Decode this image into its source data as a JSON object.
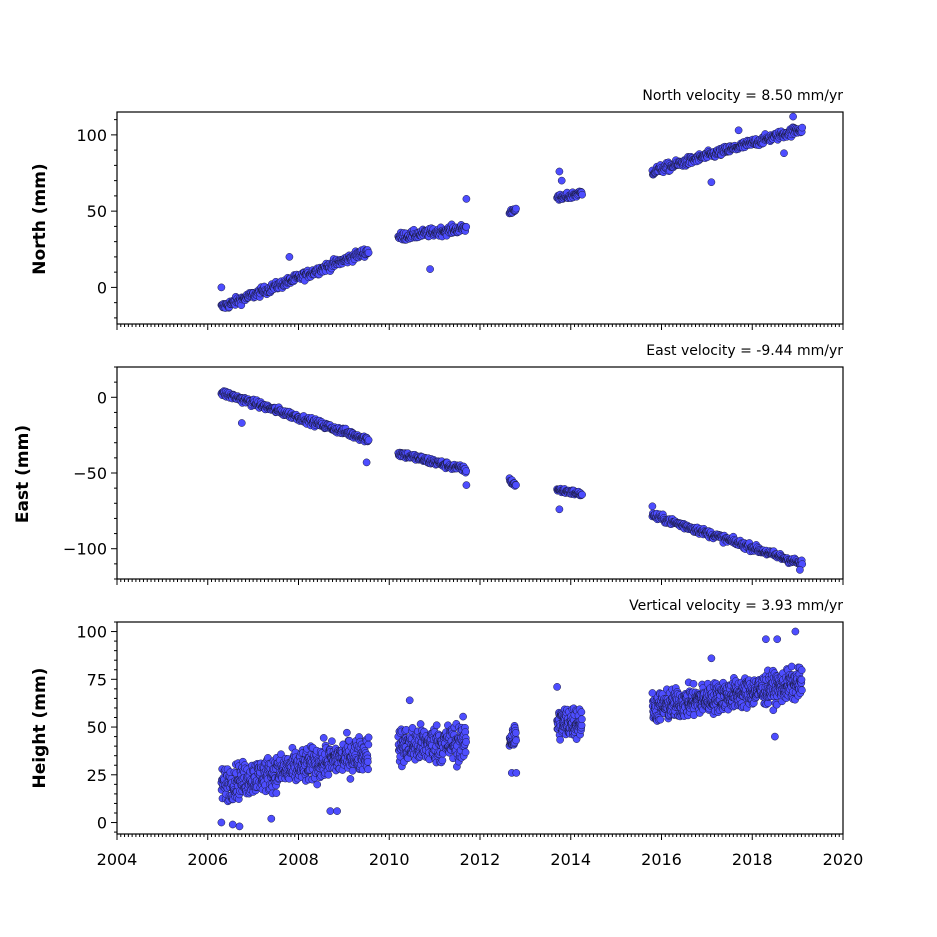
{
  "chart_data": [
    {
      "type": "scatter",
      "ylabel": "North (mm)",
      "annotation": "North velocity = 8.50 mm/yr",
      "ylim": [
        -24,
        115
      ],
      "yticks": [
        0,
        50,
        100
      ],
      "xlim": [
        2004,
        2020
      ],
      "marker_color": "#4d4dff",
      "segments": [
        {
          "start": 2006.3,
          "end": 2009.55,
          "y0": -13,
          "y1": 24,
          "spread": 5,
          "step": 0.011
        },
        {
          "start": 2010.2,
          "end": 2011.7,
          "y0": 33,
          "y1": 39,
          "spread": 5,
          "step": 0.011
        },
        {
          "start": 2012.65,
          "end": 2012.8,
          "y0": 49,
          "y1": 52,
          "spread": 3,
          "step": 0.011
        },
        {
          "start": 2013.7,
          "end": 2014.25,
          "y0": 58,
          "y1": 62,
          "spread": 4,
          "step": 0.011
        },
        {
          "start": 2015.8,
          "end": 2019.1,
          "y0": 76,
          "y1": 104,
          "spread": 5,
          "step": 0.011
        }
      ],
      "outliers": [
        {
          "x": 2006.3,
          "y": 0
        },
        {
          "x": 2007.8,
          "y": 20
        },
        {
          "x": 2010.9,
          "y": 12
        },
        {
          "x": 2011.7,
          "y": 58
        },
        {
          "x": 2013.75,
          "y": 76
        },
        {
          "x": 2013.8,
          "y": 70
        },
        {
          "x": 2017.1,
          "y": 69
        },
        {
          "x": 2017.7,
          "y": 103
        },
        {
          "x": 2018.9,
          "y": 112
        },
        {
          "x": 2018.7,
          "y": 88
        }
      ]
    },
    {
      "type": "scatter",
      "ylabel": "East (mm)",
      "annotation": "East velocity = -9.44 mm/yr",
      "ylim": [
        -120,
        20
      ],
      "yticks": [
        -100,
        -50,
        0
      ],
      "xlim": [
        2004,
        2020
      ],
      "marker_color": "#4d4dff",
      "segments": [
        {
          "start": 2006.3,
          "end": 2009.55,
          "y0": 3,
          "y1": -28,
          "spread": 4,
          "step": 0.011
        },
        {
          "start": 2010.2,
          "end": 2011.7,
          "y0": -37,
          "y1": -48,
          "spread": 4,
          "step": 0.011
        },
        {
          "start": 2012.65,
          "end": 2012.8,
          "y0": -55,
          "y1": -58,
          "spread": 3,
          "step": 0.011
        },
        {
          "start": 2013.7,
          "end": 2014.25,
          "y0": -61,
          "y1": -64,
          "spread": 3,
          "step": 0.011
        },
        {
          "start": 2015.8,
          "end": 2019.1,
          "y0": -78,
          "y1": -110,
          "spread": 4,
          "step": 0.011
        }
      ],
      "outliers": [
        {
          "x": 2006.75,
          "y": -17
        },
        {
          "x": 2009.5,
          "y": -43
        },
        {
          "x": 2011.7,
          "y": -58
        },
        {
          "x": 2013.75,
          "y": -74
        },
        {
          "x": 2015.8,
          "y": -72
        },
        {
          "x": 2019.05,
          "y": -114
        }
      ]
    },
    {
      "type": "scatter",
      "ylabel": "Height (mm)",
      "annotation": "Vertical velocity = 3.93 mm/yr",
      "ylim": [
        -6,
        105
      ],
      "yticks": [
        0,
        25,
        50,
        75,
        100
      ],
      "xlim": [
        2004,
        2020
      ],
      "xticks": [
        2004,
        2006,
        2008,
        2010,
        2012,
        2014,
        2016,
        2018,
        2020
      ],
      "marker_color": "#4d4dff",
      "segments": [
        {
          "start": 2006.3,
          "end": 2009.55,
          "y0": 20,
          "y1": 37,
          "spread": 16,
          "step": 0.006
        },
        {
          "start": 2010.2,
          "end": 2011.7,
          "y0": 40,
          "y1": 42,
          "spread": 18,
          "step": 0.006
        },
        {
          "start": 2012.65,
          "end": 2012.8,
          "y0": 44,
          "y1": 45,
          "spread": 14,
          "step": 0.005
        },
        {
          "start": 2013.7,
          "end": 2014.25,
          "y0": 52,
          "y1": 53,
          "spread": 15,
          "step": 0.005
        },
        {
          "start": 2015.8,
          "end": 2019.1,
          "y0": 60,
          "y1": 73,
          "spread": 14,
          "step": 0.005
        }
      ],
      "outliers": [
        {
          "x": 2006.3,
          "y": 0
        },
        {
          "x": 2006.55,
          "y": -1
        },
        {
          "x": 2006.7,
          "y": -2
        },
        {
          "x": 2007.4,
          "y": 2
        },
        {
          "x": 2008.7,
          "y": 6
        },
        {
          "x": 2008.85,
          "y": 6
        },
        {
          "x": 2012.7,
          "y": 26
        },
        {
          "x": 2012.8,
          "y": 26
        },
        {
          "x": 2010.45,
          "y": 64
        },
        {
          "x": 2018.3,
          "y": 96
        },
        {
          "x": 2018.55,
          "y": 96
        },
        {
          "x": 2018.95,
          "y": 100
        },
        {
          "x": 2017.1,
          "y": 86
        },
        {
          "x": 2018.5,
          "y": 45
        },
        {
          "x": 2013.7,
          "y": 71
        }
      ]
    }
  ]
}
